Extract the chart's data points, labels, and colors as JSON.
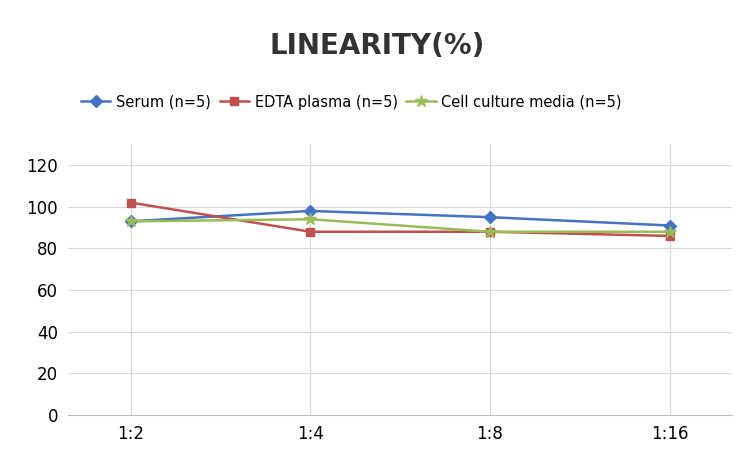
{
  "title": "LINEARITY(%)",
  "title_fontsize": 20,
  "title_fontweight": "bold",
  "x_labels": [
    "1:2",
    "1:4",
    "1:8",
    "1:16"
  ],
  "series": [
    {
      "label": "Serum (n=5)",
      "values": [
        93,
        98,
        95,
        91
      ],
      "color": "#4472C4",
      "marker": "D",
      "marker_size": 6
    },
    {
      "label": "EDTA plasma (n=5)",
      "values": [
        102,
        88,
        88,
        86
      ],
      "color": "#C0504D",
      "marker": "s",
      "marker_size": 6
    },
    {
      "label": "Cell culture media (n=5)",
      "values": [
        93,
        94,
        88,
        88
      ],
      "color": "#9BBB59",
      "marker": "*",
      "marker_size": 9
    }
  ],
  "ylim": [
    0,
    130
  ],
  "yticks": [
    0,
    20,
    40,
    60,
    80,
    100,
    120
  ],
  "background_color": "#FFFFFF",
  "legend_fontsize": 10.5,
  "tick_fontsize": 12,
  "grid_color": "#D9D9D9",
  "spine_color": "#BFBFBF",
  "title_color": "#333333"
}
